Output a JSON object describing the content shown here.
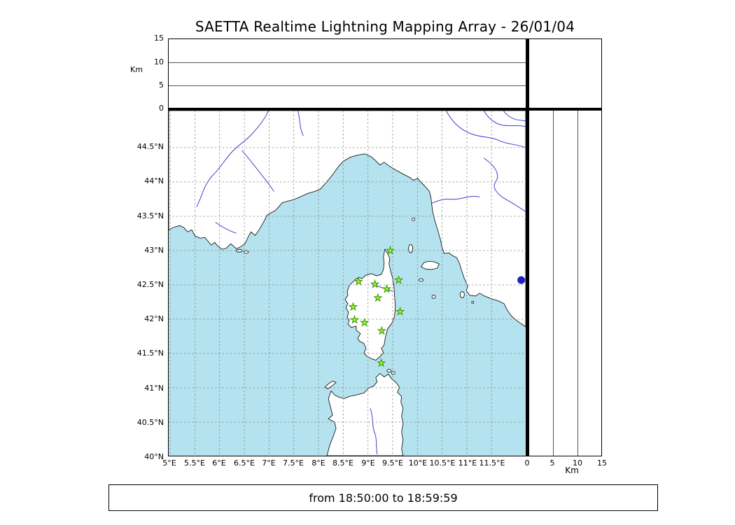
{
  "title": "SAETTA Realtime Lightning Mapping Array - 26/01/04",
  "status_bar": {
    "text": "from 18:50:00 to 18:59:59"
  },
  "panels": {
    "altitude_top": {
      "unit_label": "Km",
      "tick_labels": [
        "15",
        "10",
        "5",
        "0"
      ],
      "range_km": [
        0,
        15
      ],
      "gridlines_km": [
        5,
        10
      ]
    },
    "altitude_right": {
      "unit_label": "Km",
      "tick_labels": [
        "0",
        "5",
        "10",
        "15"
      ],
      "range_km": [
        0,
        15
      ],
      "gridlines_km": [
        5,
        10
      ]
    }
  },
  "map": {
    "extent": {
      "lon_min": 4.97,
      "lon_max": 12.19,
      "lat_min": 40.01,
      "lat_max": 45.04
    },
    "lon_tick_labels": [
      "5°E",
      "5.5°E",
      "6°E",
      "6.5°E",
      "7°E",
      "7.5°E",
      "8°E",
      "8.5°E",
      "9°E",
      "9.5°E",
      "10°E",
      "10.5°E",
      "11°E",
      "11.5°E"
    ],
    "lat_tick_labels": [
      "44.5°N",
      "44°N",
      "43.5°N",
      "43°N",
      "42.5°N",
      "42°N",
      "41.5°N",
      "41°N",
      "40.5°N",
      "40°N"
    ],
    "colors": {
      "sea": "#b4e2ef",
      "land": "#ffffff",
      "coast": "#000000",
      "river": "#4040d0",
      "lake": "#2020c8",
      "grid": "#8a8a8a",
      "station_fill": "#aaee33",
      "station_stroke": "#339900"
    },
    "station_marker_symbol": "star",
    "stations": [
      {
        "lon": 9.45,
        "lat": 43.0
      },
      {
        "lon": 8.81,
        "lat": 42.55
      },
      {
        "lon": 9.14,
        "lat": 42.51
      },
      {
        "lon": 9.62,
        "lat": 42.57
      },
      {
        "lon": 9.38,
        "lat": 42.44
      },
      {
        "lon": 9.2,
        "lat": 42.31
      },
      {
        "lon": 8.7,
        "lat": 42.18
      },
      {
        "lon": 9.65,
        "lat": 42.11
      },
      {
        "lon": 8.73,
        "lat": 41.99
      },
      {
        "lon": 8.93,
        "lat": 41.95
      },
      {
        "lon": 9.28,
        "lat": 41.83
      },
      {
        "lon": 9.27,
        "lat": 41.36
      }
    ],
    "lake_marker": {
      "lon": 12.1,
      "lat": 42.57
    }
  }
}
